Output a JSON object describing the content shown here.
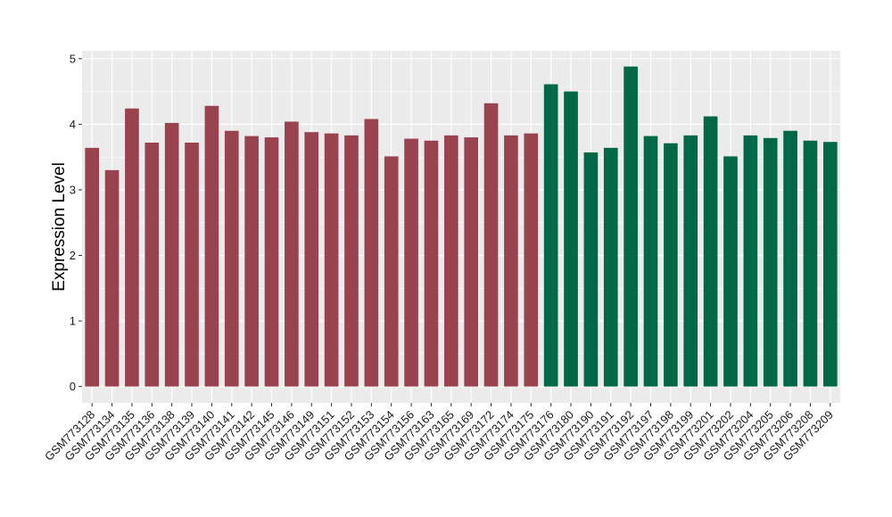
{
  "chart_data": {
    "type": "bar",
    "xlabel": "",
    "ylabel": "Expression Level",
    "ylim": [
      -0.25,
      5.12
    ],
    "yticks": [
      0,
      1,
      2,
      3,
      4,
      5
    ],
    "grid": true,
    "legend": "none",
    "background": "#ebebeb",
    "gridline_color": "#ffffff",
    "categories": [
      "GSM773128",
      "GSM773134",
      "GSM773135",
      "GSM773136",
      "GSM773138",
      "GSM773139",
      "GSM773140",
      "GSM773141",
      "GSM773142",
      "GSM773145",
      "GSM773146",
      "GSM773149",
      "GSM773151",
      "GSM773152",
      "GSM773153",
      "GSM773154",
      "GSM773156",
      "GSM773163",
      "GSM773165",
      "GSM773169",
      "GSM773172",
      "GSM773174",
      "GSM773175",
      "GSM773176",
      "GSM773180",
      "GSM773190",
      "GSM773191",
      "GSM773192",
      "GSM773197",
      "GSM773198",
      "GSM773199",
      "GSM773201",
      "GSM773202",
      "GSM773204",
      "GSM773205",
      "GSM773206",
      "GSM773208",
      "GSM773209"
    ],
    "values": [
      3.64,
      3.3,
      4.24,
      3.72,
      4.02,
      3.72,
      4.28,
      3.9,
      3.82,
      3.8,
      4.04,
      3.88,
      3.86,
      3.83,
      4.08,
      3.51,
      3.78,
      3.75,
      3.83,
      3.8,
      4.32,
      3.83,
      3.86,
      4.61,
      4.5,
      3.57,
      3.64,
      4.88,
      3.82,
      3.71,
      3.83,
      4.12,
      3.51,
      3.83,
      3.79,
      3.9,
      3.75,
      3.73
    ],
    "groups": [
      0,
      0,
      0,
      0,
      0,
      0,
      0,
      0,
      0,
      0,
      0,
      0,
      0,
      0,
      0,
      0,
      0,
      0,
      0,
      0,
      0,
      0,
      0,
      1,
      1,
      1,
      1,
      1,
      1,
      1,
      1,
      1,
      1,
      1,
      1,
      1,
      1,
      1
    ],
    "group_colors": [
      "#99434f",
      "#006847"
    ]
  }
}
